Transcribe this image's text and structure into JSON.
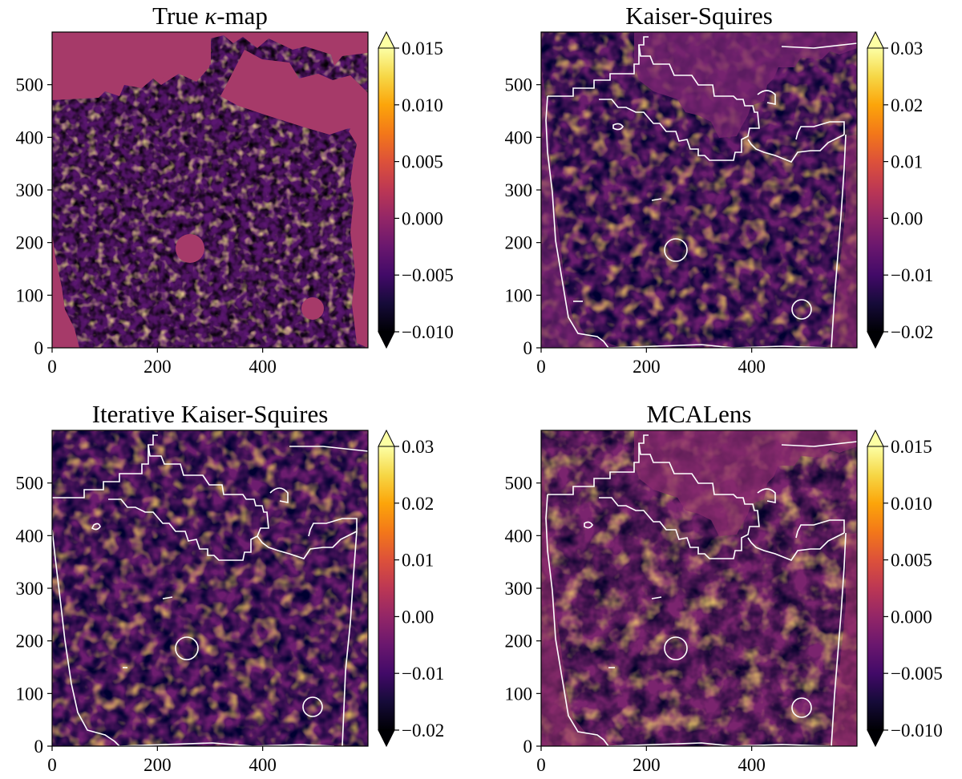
{
  "chart_data": [
    {
      "id": "true",
      "type": "heatmap",
      "title": "True κ-map",
      "title_prefix": "True ",
      "title_symbol": "κ",
      "title_suffix": "-map",
      "xlim": [
        0,
        600
      ],
      "ylim": [
        0,
        600
      ],
      "xticks": [
        "0",
        "200",
        "400"
      ],
      "yticks": [
        "0",
        "100",
        "200",
        "300",
        "400",
        "500"
      ],
      "colorbar": {
        "range": [
          -0.01,
          0.015
        ],
        "ticks": [
          "0.015",
          "0.010",
          "0.005",
          "0.000",
          "−0.005",
          "−0.010"
        ],
        "tick_values": [
          0.015,
          0.01,
          0.005,
          0.0,
          -0.005,
          -0.01
        ],
        "extend": "both"
      },
      "colormap": "inferno",
      "mask_outline": false
    },
    {
      "id": "ks",
      "type": "heatmap",
      "title": "Kaiser-Squires",
      "xlim": [
        0,
        600
      ],
      "ylim": [
        0,
        600
      ],
      "xticks": [
        "0",
        "200",
        "400"
      ],
      "yticks": [
        "0",
        "100",
        "200",
        "300",
        "400",
        "500"
      ],
      "colorbar": {
        "range": [
          -0.02,
          0.03
        ],
        "ticks": [
          "0.03",
          "0.02",
          "0.01",
          "0.00",
          "−0.01",
          "−0.02"
        ],
        "tick_values": [
          0.03,
          0.02,
          0.01,
          0.0,
          -0.01,
          -0.02
        ],
        "extend": "both"
      },
      "colormap": "inferno",
      "mask_outline": true
    },
    {
      "id": "iks",
      "type": "heatmap",
      "title": "Iterative Kaiser-Squires",
      "xlim": [
        0,
        600
      ],
      "ylim": [
        0,
        600
      ],
      "xticks": [
        "0",
        "200",
        "400"
      ],
      "yticks": [
        "0",
        "100",
        "200",
        "300",
        "400",
        "500"
      ],
      "colorbar": {
        "range": [
          -0.02,
          0.03
        ],
        "ticks": [
          "0.03",
          "0.02",
          "0.01",
          "0.00",
          "−0.01",
          "−0.02"
        ],
        "tick_values": [
          0.03,
          0.02,
          0.01,
          0.0,
          -0.01,
          -0.02
        ],
        "extend": "both"
      },
      "colormap": "inferno",
      "mask_outline": true
    },
    {
      "id": "mca",
      "type": "heatmap",
      "title": "MCALens",
      "xlim": [
        0,
        600
      ],
      "ylim": [
        0,
        600
      ],
      "xticks": [
        "0",
        "200",
        "400"
      ],
      "yticks": [
        "0",
        "100",
        "200",
        "300",
        "400",
        "500"
      ],
      "colorbar": {
        "range": [
          -0.01,
          0.015
        ],
        "ticks": [
          "0.015",
          "0.010",
          "0.005",
          "0.000",
          "−0.005",
          "−0.010"
        ],
        "tick_values": [
          0.015,
          0.01,
          0.005,
          0.0,
          -0.005,
          -0.01
        ],
        "extend": "both"
      },
      "colormap": "inferno",
      "mask_outline": true
    }
  ]
}
